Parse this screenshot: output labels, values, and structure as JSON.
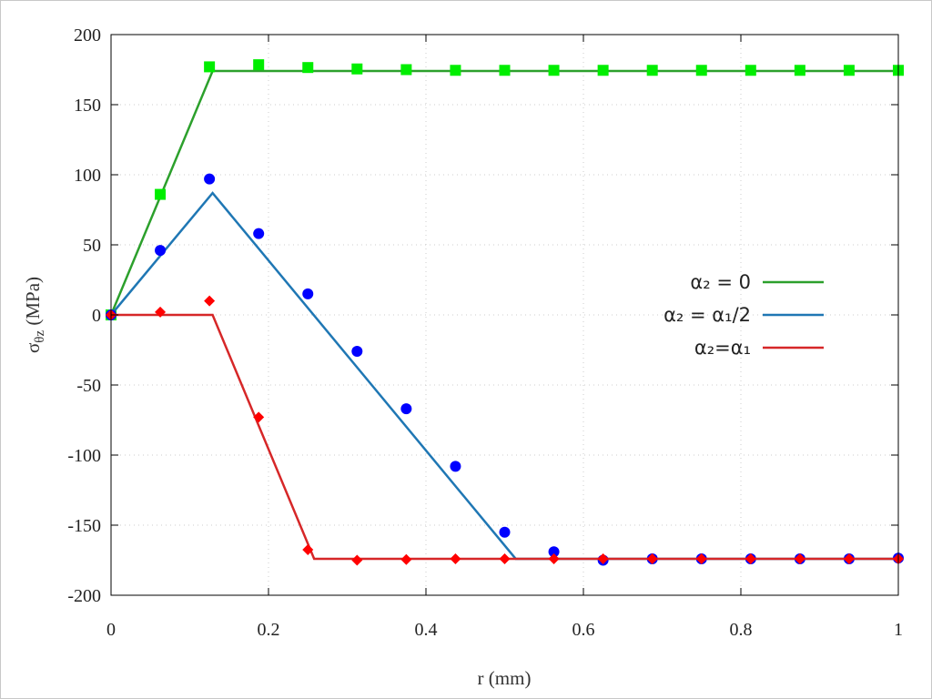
{
  "chart_data": {
    "type": "line",
    "title": "",
    "xlabel": "r (mm)",
    "ylabel": {
      "symbol": "σ",
      "subscript": "θz",
      "unit": " (MPa)"
    },
    "xlim": [
      0,
      1
    ],
    "ylim": [
      -200,
      200
    ],
    "xticks": [
      "0",
      "0.2",
      "0.4",
      "0.6",
      "0.8",
      "1"
    ],
    "xtick_values": [
      0,
      0.2,
      0.4,
      0.6,
      0.8,
      1
    ],
    "yticks": [
      "200",
      "150",
      "100",
      "50",
      "0",
      "-50",
      "-100",
      "-150",
      "-200"
    ],
    "ytick_values": [
      200,
      150,
      100,
      50,
      0,
      -50,
      -100,
      -150,
      -200
    ],
    "grid": true,
    "legend_position": "right",
    "series": [
      {
        "name": "α₂ = 0",
        "line_color": "#2ca02c",
        "marker_color": "#00ee00",
        "marker": "square",
        "line_x": [
          0,
          0.129,
          1
        ],
        "line_y": [
          0,
          174,
          174
        ],
        "points_x": [
          0,
          0.0625,
          0.125,
          0.1875,
          0.25,
          0.3125,
          0.375,
          0.4375,
          0.5,
          0.5625,
          0.625,
          0.6875,
          0.75,
          0.8125,
          0.875,
          0.9375,
          1
        ],
        "points_y": [
          0,
          86,
          177,
          178.5,
          176.5,
          175.5,
          175,
          174.5,
          174.5,
          174.5,
          174.5,
          174.5,
          174.5,
          174.5,
          174.5,
          174.5,
          174.5
        ]
      },
      {
        "name": "α₂ = α₁/2",
        "line_color": "#1f77b4",
        "marker_color": "#0000ff",
        "marker": "circle",
        "line_x": [
          0,
          0.129,
          0.514,
          1
        ],
        "line_y": [
          0,
          87,
          -174,
          -174
        ],
        "points_x": [
          0,
          0.0625,
          0.125,
          0.1875,
          0.25,
          0.3125,
          0.375,
          0.4375,
          0.5,
          0.5625,
          0.625,
          0.6875,
          0.75,
          0.8125,
          0.875,
          0.9375,
          1
        ],
        "points_y": [
          0,
          46,
          97,
          58,
          15,
          -26,
          -67,
          -108,
          -155,
          -169,
          -175,
          -174,
          -174,
          -174,
          -174,
          -174,
          -173.5
        ]
      },
      {
        "name": "α₂=α₁",
        "line_color": "#d62728",
        "marker_color": "#ff0000",
        "marker": "diamond",
        "line_x": [
          0,
          0.129,
          0.258,
          1
        ],
        "line_y": [
          0,
          0,
          -174,
          -174
        ],
        "points_x": [
          0,
          0.0625,
          0.125,
          0.1875,
          0.25,
          0.3125,
          0.375,
          0.4375,
          0.5,
          0.5625,
          0.625,
          0.6875,
          0.75,
          0.8125,
          0.875,
          0.9375,
          1
        ],
        "points_y": [
          0,
          2,
          10,
          -73,
          -167.5,
          -175,
          -174.5,
          -174,
          -174,
          -174,
          -174,
          -174,
          -174,
          -174,
          -174,
          -174,
          -174
        ]
      }
    ]
  }
}
